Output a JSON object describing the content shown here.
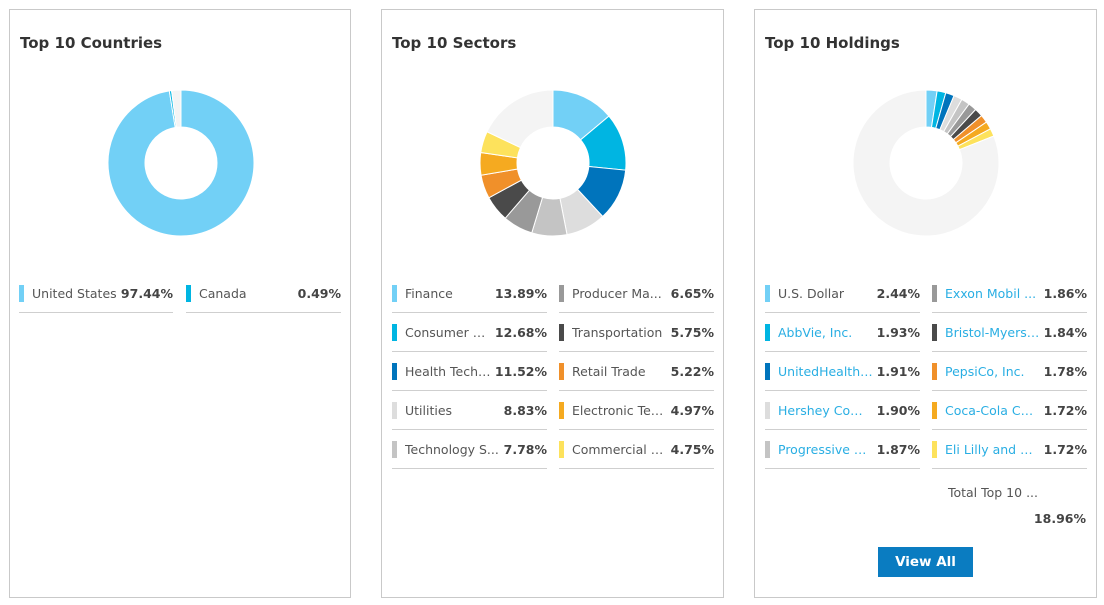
{
  "countries": {
    "title": "Top 10 Countries",
    "items": [
      {
        "label": "United States",
        "value": "97.44%",
        "pct": 97.44,
        "color": "#72d0f6"
      },
      {
        "label": "Canada",
        "value": "0.49%",
        "pct": 0.49,
        "color": "#00b5e2"
      }
    ]
  },
  "sectors": {
    "title": "Top 10 Sectors",
    "items": [
      {
        "label": "Finance",
        "value": "13.89%",
        "pct": 13.89,
        "color": "#72d0f6"
      },
      {
        "label": "Consumer No...",
        "value": "12.68%",
        "pct": 12.68,
        "color": "#00b5e2"
      },
      {
        "label": "Health Techn...",
        "value": "11.52%",
        "pct": 11.52,
        "color": "#0074bc"
      },
      {
        "label": "Utilities",
        "value": "8.83%",
        "pct": 8.83,
        "color": "#dddddd"
      },
      {
        "label": "Technology S...",
        "value": "7.78%",
        "pct": 7.78,
        "color": "#c4c4c4"
      },
      {
        "label": "Producer Ma...",
        "value": "6.65%",
        "pct": 6.65,
        "color": "#999999"
      },
      {
        "label": "Transportation",
        "value": "5.75%",
        "pct": 5.75,
        "color": "#4a4a4a"
      },
      {
        "label": "Retail Trade",
        "value": "5.22%",
        "pct": 5.22,
        "color": "#f0902a"
      },
      {
        "label": "Electronic Tec...",
        "value": "4.97%",
        "pct": 4.97,
        "color": "#f5aa20"
      },
      {
        "label": "Commercial S...",
        "value": "4.75%",
        "pct": 4.75,
        "color": "#fde25c"
      }
    ]
  },
  "holdings": {
    "title": "Top 10 Holdings",
    "items": [
      {
        "label": "U.S. Dollar",
        "value": "2.44%",
        "pct": 2.44,
        "color": "#72d0f6",
        "link": false
      },
      {
        "label": "AbbVie, Inc.",
        "value": "1.93%",
        "pct": 1.93,
        "color": "#00b5e2",
        "link": true
      },
      {
        "label": "UnitedHealth ...",
        "value": "1.91%",
        "pct": 1.91,
        "color": "#0074bc",
        "link": true
      },
      {
        "label": "Hershey Com...",
        "value": "1.90%",
        "pct": 1.9,
        "color": "#dddddd",
        "link": true
      },
      {
        "label": "Progressive C...",
        "value": "1.87%",
        "pct": 1.87,
        "color": "#c4c4c4",
        "link": true
      },
      {
        "label": "Exxon Mobil ...",
        "value": "1.86%",
        "pct": 1.86,
        "color": "#999999",
        "link": true
      },
      {
        "label": "Bristol-Myers ...",
        "value": "1.84%",
        "pct": 1.84,
        "color": "#4a4a4a",
        "link": true
      },
      {
        "label": "PepsiCo, Inc.",
        "value": "1.78%",
        "pct": 1.78,
        "color": "#f0902a",
        "link": true
      },
      {
        "label": "Coca-Cola Co...",
        "value": "1.72%",
        "pct": 1.72,
        "color": "#f5aa20",
        "link": true
      },
      {
        "label": "Eli Lilly and C...",
        "value": "1.72%",
        "pct": 1.72,
        "color": "#fde25c",
        "link": true
      }
    ],
    "total_label": "Total Top 10 ...",
    "total_value": "18.96%",
    "view_all_label": "View All"
  },
  "colors": {
    "remainder": "#f4f4f4"
  },
  "chart_data": [
    {
      "type": "pie",
      "title": "Top 10 Countries",
      "categories": [
        "United States",
        "Canada"
      ],
      "values": [
        97.44,
        0.49
      ]
    },
    {
      "type": "pie",
      "title": "Top 10 Sectors",
      "categories": [
        "Finance",
        "Consumer No...",
        "Health Techn...",
        "Utilities",
        "Technology S...",
        "Producer Ma...",
        "Transportation",
        "Retail Trade",
        "Electronic Tec...",
        "Commercial S..."
      ],
      "values": [
        13.89,
        12.68,
        11.52,
        8.83,
        7.78,
        6.65,
        5.75,
        5.22,
        4.97,
        4.75
      ]
    },
    {
      "type": "pie",
      "title": "Top 10 Holdings",
      "categories": [
        "U.S. Dollar",
        "AbbVie, Inc.",
        "UnitedHealth ...",
        "Hershey Com...",
        "Progressive C...",
        "Exxon Mobil ...",
        "Bristol-Myers ...",
        "PepsiCo, Inc.",
        "Coca-Cola Co...",
        "Eli Lilly and C..."
      ],
      "values": [
        2.44,
        1.93,
        1.91,
        1.9,
        1.87,
        1.86,
        1.84,
        1.78,
        1.72,
        1.72
      ]
    }
  ]
}
